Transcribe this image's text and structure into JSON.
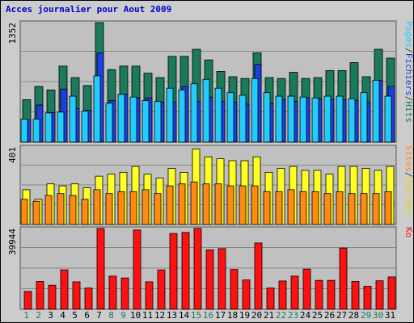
{
  "title": "Acces journalier pour Aout 2009",
  "colors": {
    "hits": "#1a7a5a",
    "files": "#1c3fe0",
    "pages": "#22ccff",
    "visits": "#ffff22",
    "sites": "#ff8c11",
    "kb": "#ff1111",
    "label_blue": "#0000cc",
    "label_green": "#1a7a5a",
    "day_green": "#1a7a5a"
  },
  "chart_data": [
    {
      "type": "bar",
      "panel": "top",
      "ymax_label": "1352",
      "ylim": [
        0,
        1352
      ],
      "x": [
        1,
        2,
        3,
        4,
        5,
        6,
        7,
        8,
        9,
        10,
        11,
        12,
        13,
        14,
        15,
        16,
        17,
        18,
        19,
        20,
        21,
        22,
        23,
        24,
        25,
        26,
        27,
        28,
        29,
        30,
        31
      ],
      "right_label": [
        "Pages",
        "/",
        "Fichiers",
        "/",
        "Hits"
      ],
      "series": [
        {
          "name": "Hits",
          "values": [
            480,
            630,
            590,
            860,
            730,
            640,
            1352,
            820,
            860,
            860,
            780,
            730,
            970,
            970,
            1050,
            930,
            800,
            740,
            720,
            1010,
            730,
            720,
            790,
            720,
            730,
            810,
            810,
            900,
            740,
            1050,
            950
          ]
        },
        {
          "name": "Fichiers",
          "values": [
            250,
            420,
            335,
            600,
            380,
            360,
            1010,
            470,
            540,
            500,
            500,
            450,
            450,
            630,
            460,
            510,
            460,
            450,
            430,
            880,
            440,
            480,
            460,
            500,
            490,
            480,
            480,
            470,
            450,
            700,
            630
          ]
        },
        {
          "name": "Pages",
          "values": [
            260,
            260,
            330,
            340,
            520,
            350,
            750,
            440,
            540,
            510,
            470,
            460,
            610,
            590,
            660,
            710,
            610,
            560,
            530,
            720,
            560,
            520,
            520,
            510,
            500,
            520,
            520,
            490,
            560,
            700,
            520
          ]
        }
      ]
    },
    {
      "type": "bar",
      "panel": "middle",
      "ymax_label": "401",
      "ylim": [
        0,
        401
      ],
      "x": [
        1,
        2,
        3,
        4,
        5,
        6,
        7,
        8,
        9,
        10,
        11,
        12,
        13,
        14,
        15,
        16,
        17,
        18,
        19,
        20,
        21,
        22,
        23,
        24,
        25,
        26,
        27,
        28,
        29,
        30,
        31
      ],
      "right_label": [
        "Sites",
        "/",
        "Visites"
      ],
      "series": [
        {
          "name": "Visites",
          "values": [
            180,
            130,
            210,
            200,
            210,
            190,
            250,
            260,
            270,
            300,
            260,
            240,
            290,
            270,
            390,
            350,
            340,
            330,
            330,
            350,
            270,
            290,
            300,
            280,
            280,
            260,
            300,
            300,
            290,
            280,
            300
          ]
        },
        {
          "name": "Sites",
          "values": [
            130,
            120,
            150,
            160,
            150,
            130,
            180,
            160,
            170,
            170,
            180,
            160,
            200,
            210,
            220,
            210,
            210,
            200,
            200,
            200,
            170,
            170,
            180,
            170,
            170,
            160,
            170,
            160,
            160,
            160,
            170
          ]
        }
      ]
    },
    {
      "type": "bar",
      "panel": "bottom",
      "ymax_label": "39944",
      "ylim": [
        0,
        39944
      ],
      "x": [
        1,
        2,
        3,
        4,
        5,
        6,
        7,
        8,
        9,
        10,
        11,
        12,
        13,
        14,
        15,
        16,
        17,
        18,
        19,
        20,
        21,
        22,
        23,
        24,
        25,
        26,
        27,
        28,
        29,
        30,
        31
      ],
      "right_label": [
        "Ko"
      ],
      "series": [
        {
          "name": "Ko",
          "values": [
            8800,
            13800,
            11900,
            19500,
            13600,
            10500,
            39944,
            16400,
            15500,
            39200,
            13600,
            19500,
            37500,
            38000,
            40000,
            29400,
            30000,
            19700,
            14500,
            32800,
            10500,
            14000,
            16400,
            19900,
            14300,
            14300,
            30300,
            13800,
            11400,
            14100,
            16000
          ]
        }
      ]
    }
  ],
  "days": [
    "1",
    "2",
    "3",
    "4",
    "5",
    "6",
    "7",
    "8",
    "9",
    "10",
    "11",
    "12",
    "13",
    "14",
    "15",
    "16",
    "17",
    "18",
    "19",
    "20",
    "21",
    "22",
    "23",
    "24",
    "25",
    "26",
    "27",
    "28",
    "29",
    "30",
    "31"
  ],
  "weekend_days": [
    1,
    2,
    8,
    9,
    15,
    16,
    22,
    23,
    29,
    30
  ]
}
